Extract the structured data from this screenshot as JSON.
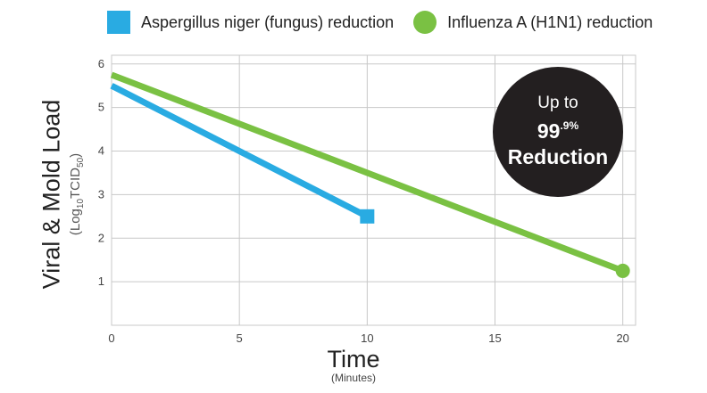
{
  "legend": [
    {
      "label": "Aspergillus niger (fungus) reduction",
      "color": "#29abe2",
      "shape": "square"
    },
    {
      "label": "Influenza A (H1N1) reduction",
      "color": "#7ac143",
      "shape": "circle"
    }
  ],
  "axes": {
    "ylabel_main": "Viral & Mold Load",
    "ylabel_sub_prefix": "(Log",
    "ylabel_sub_sub1": "10",
    "ylabel_sub_mid": "TCID",
    "ylabel_sub_sub2": "50",
    "ylabel_sub_suffix": ")",
    "xlabel": "Time",
    "xlabel_sub": "(Minutes)"
  },
  "badge": {
    "line1": "Up to",
    "line2": "99",
    "line2_sup": ".9%",
    "line3": "Reduction"
  },
  "chart_data": {
    "type": "line",
    "x_ticks": [
      0,
      5,
      10,
      15,
      20
    ],
    "y_ticks": [
      1,
      2,
      3,
      4,
      5,
      6
    ],
    "xlim": [
      0,
      20.5
    ],
    "ylim": [
      0,
      6.2
    ],
    "grid": true,
    "legend_position": "top",
    "series": [
      {
        "name": "Aspergillus niger (fungus) reduction",
        "color": "#29abe2",
        "marker": "square",
        "points": [
          [
            0,
            5.5
          ],
          [
            10,
            2.5
          ]
        ]
      },
      {
        "name": "Influenza A (H1N1) reduction",
        "color": "#7ac143",
        "marker": "circle",
        "points": [
          [
            0,
            5.75
          ],
          [
            20,
            1.25
          ]
        ]
      }
    ]
  }
}
